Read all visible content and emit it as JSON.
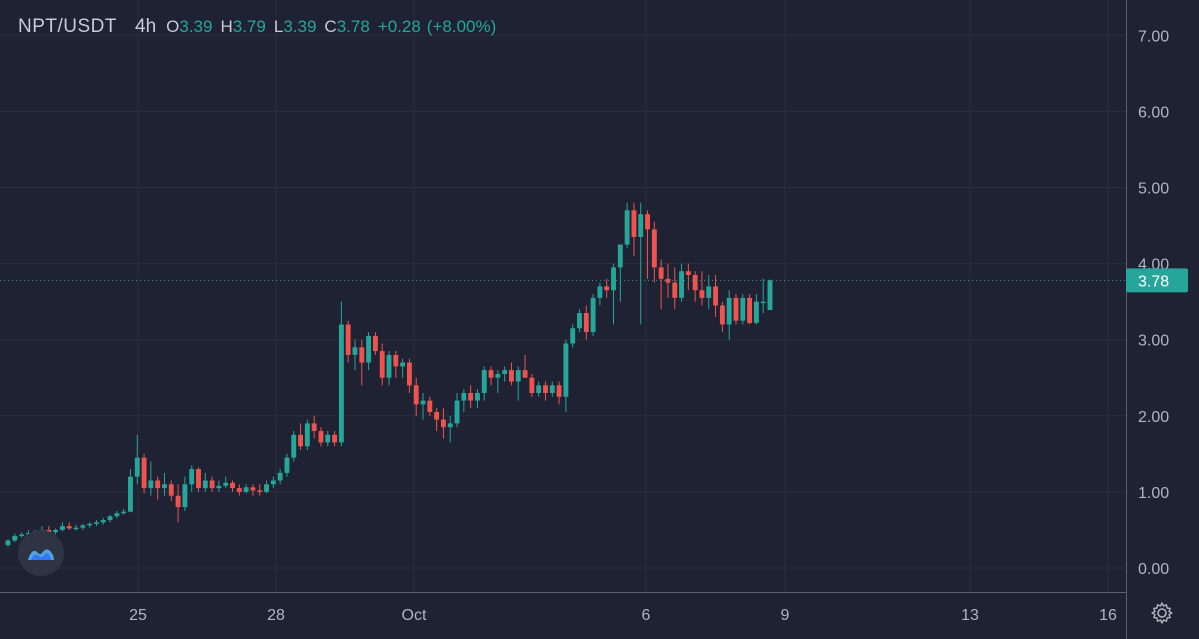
{
  "legend": {
    "symbol": "NPT/USDT",
    "timeframe": "4h",
    "open_key": "O",
    "open": "3.39",
    "high_key": "H",
    "high": "3.79",
    "low_key": "L",
    "low": "3.39",
    "close_key": "C",
    "close": "3.78",
    "change": "+0.28",
    "change_pct": "(+8.00%)"
  },
  "price_axis": {
    "labels": [
      "0.00",
      "1.00",
      "2.00",
      "3.00",
      "4.00",
      "5.00",
      "6.00",
      "7.00"
    ],
    "last_price_label": "3.78"
  },
  "time_axis": {
    "labels": [
      "25",
      "28",
      "Oct",
      "6",
      "9",
      "13",
      "16"
    ]
  },
  "colors": {
    "background": "#1e2232",
    "grid": "#2a2e3d",
    "up": "#26a69a",
    "down": "#ef5350",
    "text": "#b2b5be",
    "last_price_badge": "#26a69a"
  },
  "icons": {
    "logo": "tradingview-logo-icon",
    "settings": "gear-icon"
  },
  "chart_data": {
    "type": "candlestick",
    "title": "NPT/USDT",
    "timeframe": "4h",
    "ylim": [
      0,
      7.2
    ],
    "grid": true,
    "x_ticks": [
      "25",
      "28",
      "Oct",
      "6",
      "9",
      "13",
      "16"
    ],
    "y_ticks": [
      0,
      1,
      2,
      3,
      4,
      5,
      6,
      7
    ],
    "last_price": 3.78,
    "candles": [
      [
        0.3,
        0.38,
        0.28,
        0.36
      ],
      [
        0.36,
        0.45,
        0.34,
        0.42
      ],
      [
        0.42,
        0.47,
        0.4,
        0.44
      ],
      [
        0.44,
        0.5,
        0.42,
        0.46
      ],
      [
        0.46,
        0.5,
        0.43,
        0.48
      ],
      [
        0.48,
        0.55,
        0.45,
        0.5
      ],
      [
        0.5,
        0.55,
        0.44,
        0.47
      ],
      [
        0.47,
        0.52,
        0.44,
        0.5
      ],
      [
        0.5,
        0.6,
        0.48,
        0.55
      ],
      [
        0.55,
        0.6,
        0.5,
        0.52
      ],
      [
        0.52,
        0.57,
        0.49,
        0.53
      ],
      [
        0.53,
        0.58,
        0.5,
        0.56
      ],
      [
        0.56,
        0.6,
        0.53,
        0.58
      ],
      [
        0.58,
        0.63,
        0.55,
        0.6
      ],
      [
        0.6,
        0.66,
        0.57,
        0.63
      ],
      [
        0.63,
        0.7,
        0.6,
        0.68
      ],
      [
        0.68,
        0.75,
        0.65,
        0.72
      ],
      [
        0.72,
        0.78,
        0.7,
        0.74
      ],
      [
        0.74,
        1.3,
        0.73,
        1.2
      ],
      [
        1.2,
        1.75,
        1.1,
        1.45
      ],
      [
        1.45,
        1.5,
        0.98,
        1.05
      ],
      [
        1.05,
        1.4,
        0.95,
        1.15
      ],
      [
        1.15,
        1.2,
        0.9,
        1.05
      ],
      [
        1.05,
        1.25,
        0.95,
        1.1
      ],
      [
        1.1,
        1.15,
        0.88,
        0.95
      ],
      [
        0.95,
        1.1,
        0.6,
        0.8
      ],
      [
        0.8,
        1.2,
        0.75,
        1.1
      ],
      [
        1.1,
        1.35,
        1.0,
        1.3
      ],
      [
        1.3,
        1.32,
        1.0,
        1.05
      ],
      [
        1.05,
        1.25,
        1.0,
        1.15
      ],
      [
        1.15,
        1.2,
        1.0,
        1.05
      ],
      [
        1.05,
        1.15,
        1.0,
        1.08
      ],
      [
        1.08,
        1.2,
        1.05,
        1.12
      ],
      [
        1.12,
        1.15,
        1.0,
        1.05
      ],
      [
        1.05,
        1.1,
        0.95,
        1.0
      ],
      [
        1.0,
        1.1,
        0.98,
        1.06
      ],
      [
        1.06,
        1.1,
        0.95,
        1.02
      ],
      [
        1.02,
        1.1,
        0.95,
        1.0
      ],
      [
        1.0,
        1.15,
        0.98,
        1.1
      ],
      [
        1.1,
        1.2,
        1.05,
        1.15
      ],
      [
        1.15,
        1.3,
        1.1,
        1.25
      ],
      [
        1.25,
        1.5,
        1.2,
        1.45
      ],
      [
        1.45,
        1.8,
        1.4,
        1.75
      ],
      [
        1.75,
        1.9,
        1.55,
        1.6
      ],
      [
        1.6,
        1.95,
        1.55,
        1.9
      ],
      [
        1.9,
        2.0,
        1.7,
        1.8
      ],
      [
        1.8,
        1.85,
        1.6,
        1.65
      ],
      [
        1.65,
        1.8,
        1.6,
        1.75
      ],
      [
        1.75,
        1.8,
        1.6,
        1.65
      ],
      [
        1.65,
        3.5,
        1.6,
        3.2
      ],
      [
        3.2,
        3.25,
        2.7,
        2.8
      ],
      [
        2.8,
        3.0,
        2.6,
        2.9
      ],
      [
        2.9,
        3.0,
        2.4,
        2.7
      ],
      [
        2.7,
        3.1,
        2.6,
        3.05
      ],
      [
        3.05,
        3.1,
        2.8,
        2.85
      ],
      [
        2.85,
        2.95,
        2.4,
        2.5
      ],
      [
        2.5,
        2.85,
        2.4,
        2.8
      ],
      [
        2.8,
        2.85,
        2.5,
        2.65
      ],
      [
        2.65,
        2.75,
        2.5,
        2.7
      ],
      [
        2.7,
        2.75,
        2.3,
        2.4
      ],
      [
        2.4,
        2.5,
        2.0,
        2.15
      ],
      [
        2.15,
        2.3,
        1.95,
        2.2
      ],
      [
        2.2,
        2.25,
        2.0,
        2.05
      ],
      [
        2.05,
        2.1,
        1.8,
        1.95
      ],
      [
        1.95,
        2.1,
        1.7,
        1.85
      ],
      [
        1.85,
        2.0,
        1.65,
        1.9
      ],
      [
        1.9,
        2.3,
        1.85,
        2.2
      ],
      [
        2.2,
        2.35,
        2.05,
        2.3
      ],
      [
        2.3,
        2.4,
        2.1,
        2.2
      ],
      [
        2.2,
        2.35,
        2.1,
        2.3
      ],
      [
        2.3,
        2.65,
        2.2,
        2.6
      ],
      [
        2.6,
        2.65,
        2.4,
        2.5
      ],
      [
        2.5,
        2.6,
        2.3,
        2.55
      ],
      [
        2.55,
        2.65,
        2.45,
        2.6
      ],
      [
        2.6,
        2.7,
        2.4,
        2.45
      ],
      [
        2.45,
        2.65,
        2.2,
        2.6
      ],
      [
        2.6,
        2.8,
        2.55,
        2.5
      ],
      [
        2.5,
        2.55,
        2.25,
        2.3
      ],
      [
        2.3,
        2.45,
        2.25,
        2.4
      ],
      [
        2.4,
        2.45,
        2.2,
        2.3
      ],
      [
        2.3,
        2.45,
        2.25,
        2.4
      ],
      [
        2.4,
        2.45,
        2.15,
        2.25
      ],
      [
        2.25,
        3.0,
        2.05,
        2.95
      ],
      [
        2.95,
        3.2,
        2.9,
        3.15
      ],
      [
        3.15,
        3.4,
        3.1,
        3.35
      ],
      [
        3.35,
        3.45,
        3.0,
        3.1
      ],
      [
        3.1,
        3.6,
        3.05,
        3.55
      ],
      [
        3.55,
        3.75,
        3.45,
        3.7
      ],
      [
        3.7,
        3.8,
        3.55,
        3.65
      ],
      [
        3.65,
        4.0,
        3.2,
        3.95
      ],
      [
        3.95,
        4.2,
        3.5,
        4.25
      ],
      [
        4.25,
        4.8,
        4.2,
        4.7
      ],
      [
        4.7,
        4.8,
        4.1,
        4.35
      ],
      [
        4.35,
        4.8,
        3.2,
        4.65
      ],
      [
        4.65,
        4.7,
        3.8,
        4.45
      ],
      [
        4.45,
        4.55,
        3.75,
        3.95
      ],
      [
        3.95,
        4.05,
        3.4,
        3.8
      ],
      [
        3.8,
        4.0,
        3.55,
        3.75
      ],
      [
        3.75,
        3.95,
        3.4,
        3.55
      ],
      [
        3.55,
        4.0,
        3.5,
        3.9
      ],
      [
        3.9,
        4.0,
        3.65,
        3.85
      ],
      [
        3.85,
        3.9,
        3.5,
        3.65
      ],
      [
        3.65,
        3.9,
        3.45,
        3.55
      ],
      [
        3.55,
        3.85,
        3.4,
        3.7
      ],
      [
        3.7,
        3.85,
        3.3,
        3.45
      ],
      [
        3.45,
        3.5,
        3.1,
        3.2
      ],
      [
        3.2,
        3.65,
        3.0,
        3.55
      ],
      [
        3.55,
        3.6,
        3.2,
        3.25
      ],
      [
        3.25,
        3.6,
        3.2,
        3.55
      ],
      [
        3.55,
        3.6,
        3.2,
        3.22
      ],
      [
        3.22,
        3.6,
        3.2,
        3.5
      ],
      [
        3.5,
        3.8,
        3.35,
        3.5
      ],
      [
        3.39,
        3.79,
        3.39,
        3.78
      ]
    ]
  }
}
